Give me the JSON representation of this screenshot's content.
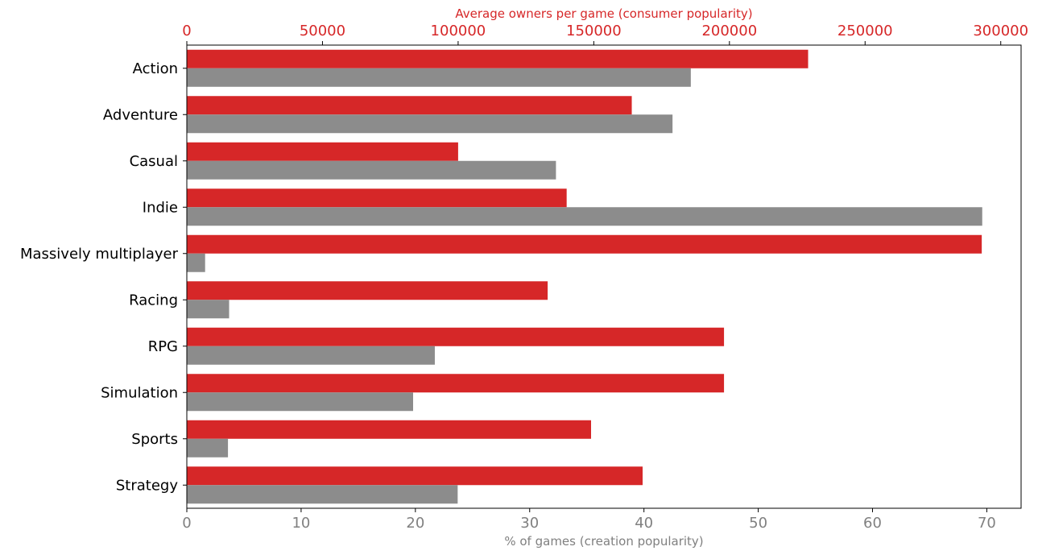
{
  "chart_data": {
    "type": "bar",
    "orientation": "horizontal",
    "categories": [
      "Action",
      "Adventure",
      "Casual",
      "Indie",
      "Massively multiplayer",
      "Racing",
      "RPG",
      "Simulation",
      "Sports",
      "Strategy"
    ],
    "series": [
      {
        "name": "Average owners per game (consumer popularity)",
        "axis": "top",
        "color": "#d62728",
        "values": [
          229000,
          164000,
          100000,
          140000,
          293000,
          133000,
          198000,
          198000,
          149000,
          168000
        ]
      },
      {
        "name": "% of games (creation popularity)",
        "axis": "bottom",
        "color": "#8c8c8c",
        "values": [
          44.1,
          42.5,
          32.3,
          69.6,
          1.6,
          3.7,
          21.7,
          19.8,
          3.6,
          23.7
        ]
      }
    ],
    "top_axis": {
      "label": "Average owners per game (consumer popularity)",
      "range": [
        0,
        307500
      ],
      "ticks": [
        0,
        50000,
        100000,
        150000,
        200000,
        250000,
        300000
      ],
      "color": "#d62728"
    },
    "bottom_axis": {
      "label": "% of games (creation popularity)",
      "range": [
        0,
        73
      ],
      "ticks": [
        0,
        10,
        20,
        30,
        40,
        50,
        60,
        70
      ],
      "color": "#808080"
    },
    "grid": false,
    "legend": "none"
  }
}
